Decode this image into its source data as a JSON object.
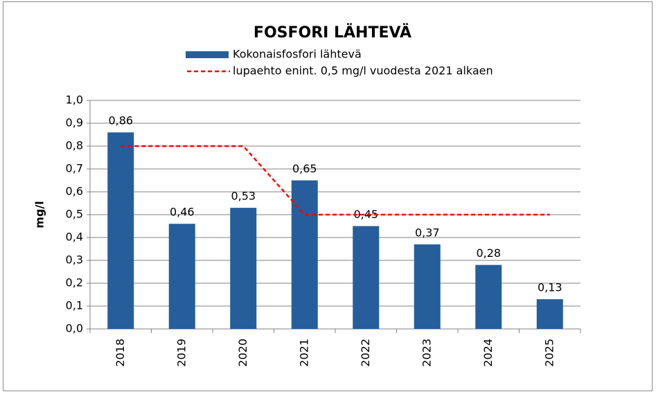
{
  "chart_data": {
    "type": "bar",
    "title": "FOSFORI LÄHTEVÄ",
    "ylabel": "mg/l",
    "categories": [
      "2018",
      "2019",
      "2020",
      "2021",
      "2022",
      "2023",
      "2024",
      "2025"
    ],
    "series": [
      {
        "name": "Kokonaisfosfori lähtevä",
        "type": "bar",
        "color": "#255e9b",
        "values": [
          0.86,
          0.46,
          0.53,
          0.65,
          0.45,
          0.37,
          0.28,
          0.13
        ],
        "value_labels": [
          "0,86",
          "0,46",
          "0,53",
          "0,65",
          "0,45",
          "0,37",
          "0,28",
          "0,13"
        ]
      },
      {
        "name": "lupaehto enint. 0,5 mg/l vuodesta 2021 alkaen",
        "type": "line",
        "dashed": true,
        "color": "#ff0000",
        "values": [
          0.8,
          0.8,
          0.8,
          0.5,
          0.5,
          0.5,
          0.5,
          0.5
        ]
      }
    ],
    "ylim": [
      0,
      1
    ],
    "yticks": [
      {
        "value": 0,
        "label": "0,0"
      },
      {
        "value": 0.1,
        "label": "0,1"
      },
      {
        "value": 0.2,
        "label": "0,2"
      },
      {
        "value": 0.3,
        "label": "0,3"
      },
      {
        "value": 0.4,
        "label": "0,4"
      },
      {
        "value": 0.5,
        "label": "0,5"
      },
      {
        "value": 0.6,
        "label": "0,6"
      },
      {
        "value": 0.7,
        "label": "0,7"
      },
      {
        "value": 0.8,
        "label": "0,8"
      },
      {
        "value": 0.9,
        "label": "0,9"
      },
      {
        "value": 1,
        "label": "1,0"
      }
    ],
    "grid": true
  }
}
